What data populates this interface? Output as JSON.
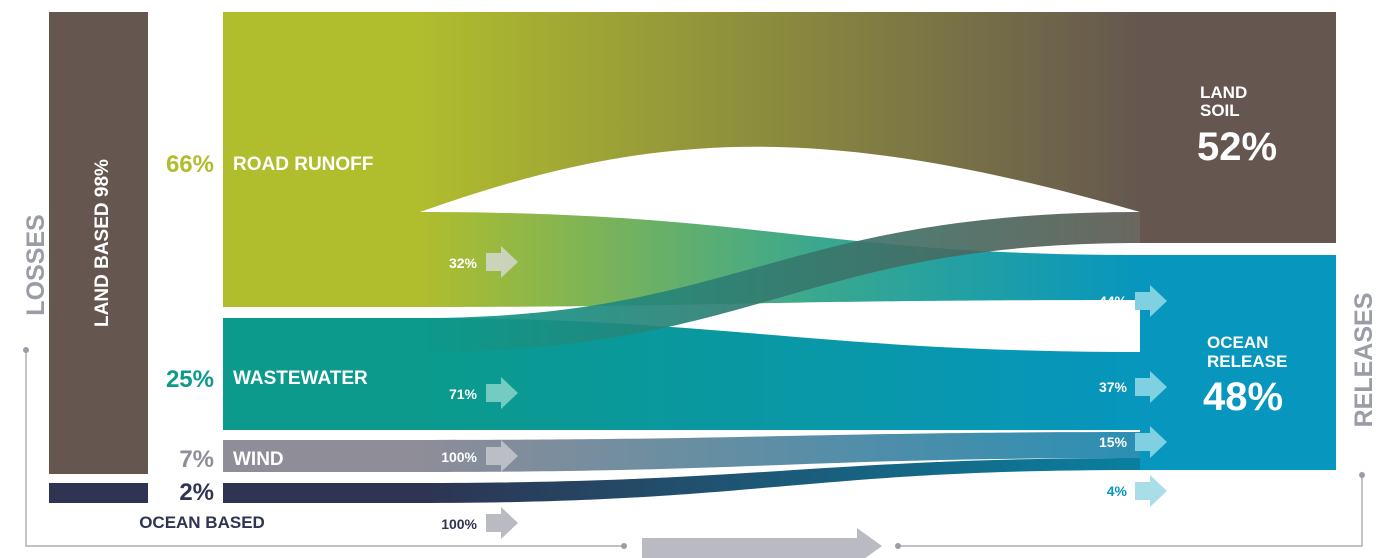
{
  "side_labels": {
    "losses": "LOSSES",
    "releases": "RELEASES"
  },
  "land_based": {
    "label": "LAND BASED 98%"
  },
  "ocean_based": {
    "pct": "2%",
    "label": "OCEAN BASED"
  },
  "sources": [
    {
      "id": "road",
      "pct": "66%",
      "label": "ROAD RUNOFF",
      "color": "#b0bd2d",
      "pct_color": "#b0bd2d"
    },
    {
      "id": "waste",
      "pct": "25%",
      "label": "WASTEWATER",
      "color": "#0b9a8c",
      "pct_color": "#0b9a8c"
    },
    {
      "id": "wind",
      "pct": "7%",
      "label": "WIND",
      "color": "#8e8d98",
      "pct_color": "#8e8d98"
    }
  ],
  "source_flow_labels": [
    "32%",
    "71%",
    "100%",
    "100%"
  ],
  "destination_flow_labels": [
    "44%",
    "37%",
    "15%",
    "4%"
  ],
  "destinations": {
    "land_soil": {
      "line1": "LAND",
      "line2": "SOIL",
      "pct": "52%",
      "color": "#65574f"
    },
    "ocean_release": {
      "line1": "OCEAN",
      "line2": "RELEASE",
      "pct": "48%",
      "color": "#0796bd"
    }
  },
  "colors": {
    "land_based_bar": "#65574f",
    "ocean_based_bar": "#2e3451",
    "arrow_light": "#d3d7cf",
    "arrow_cyan": "#7fd0e0",
    "arrow_cyan_light": "#a9dde8",
    "connector": "#9a9da5",
    "bottom_arrow": "#b9bac2"
  }
}
